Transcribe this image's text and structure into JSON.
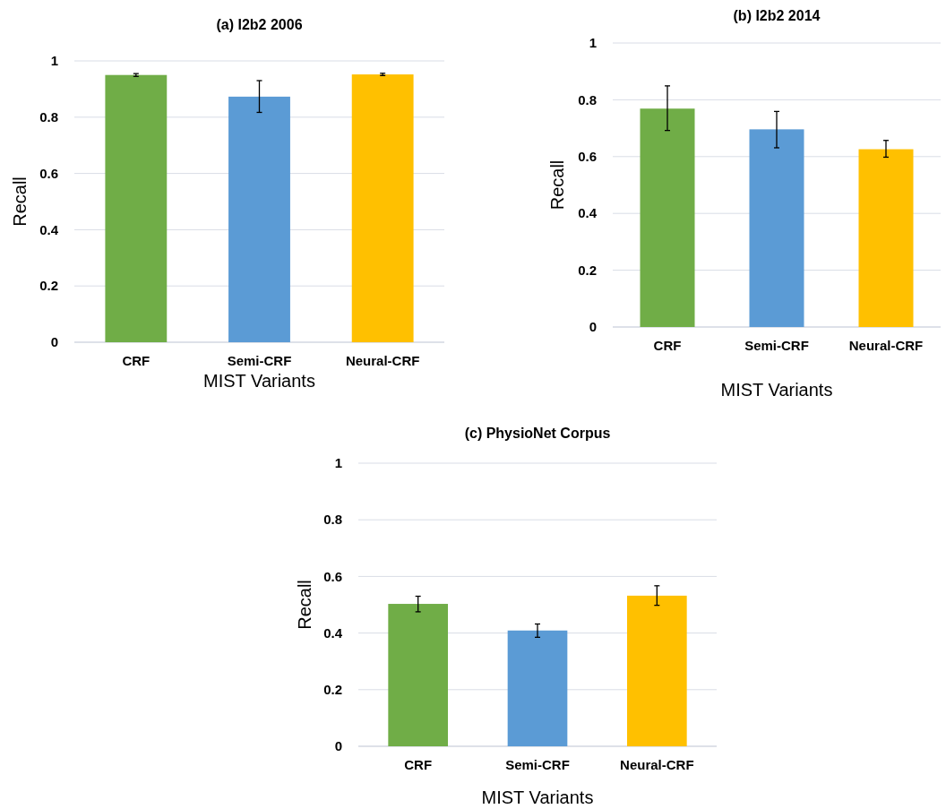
{
  "chart_data": [
    {
      "type": "bar",
      "title": "(a) I2b2 2006",
      "xlabel": "MIST Variants",
      "ylabel": "Recall",
      "categories": [
        "CRF",
        "Semi-CRF",
        "Neural-CRF"
      ],
      "values": [
        0.95,
        0.873,
        0.952
      ],
      "errors": [
        [
          0.945,
          0.955
        ],
        [
          0.817,
          0.93
        ],
        [
          0.948,
          0.956
        ]
      ],
      "colors": [
        "#70ad47",
        "#5b9bd5",
        "#ffc000"
      ],
      "ylim": [
        0,
        1
      ],
      "yticks": [
        0,
        0.2,
        0.4,
        0.6,
        0.8,
        1
      ],
      "grid": "y"
    },
    {
      "type": "bar",
      "title": "(b) I2b2 2014",
      "xlabel": "MIST Variants",
      "ylabel": "Recall",
      "categories": [
        "CRF",
        "Semi-CRF",
        "Neural-CRF"
      ],
      "values": [
        0.769,
        0.696,
        0.626
      ],
      "errors": [
        [
          0.692,
          0.849
        ],
        [
          0.631,
          0.759
        ],
        [
          0.598,
          0.657
        ]
      ],
      "colors": [
        "#70ad47",
        "#5b9bd5",
        "#ffc000"
      ],
      "ylim": [
        0,
        1
      ],
      "yticks": [
        0,
        0.2,
        0.4,
        0.6,
        0.8,
        1
      ],
      "grid": "y"
    },
    {
      "type": "bar",
      "title": "(c) PhysioNet Corpus",
      "xlabel": "MIST Variants",
      "ylabel": "Recall",
      "categories": [
        "CRF",
        "Semi-CRF",
        "Neural-CRF"
      ],
      "values": [
        0.503,
        0.409,
        0.532
      ],
      "errors": [
        [
          0.475,
          0.53
        ],
        [
          0.385,
          0.432
        ],
        [
          0.498,
          0.567
        ]
      ],
      "colors": [
        "#70ad47",
        "#5b9bd5",
        "#ffc000"
      ],
      "ylim": [
        0,
        1
      ],
      "yticks": [
        0,
        0.2,
        0.4,
        0.6,
        0.8,
        1
      ],
      "grid": "y"
    }
  ]
}
